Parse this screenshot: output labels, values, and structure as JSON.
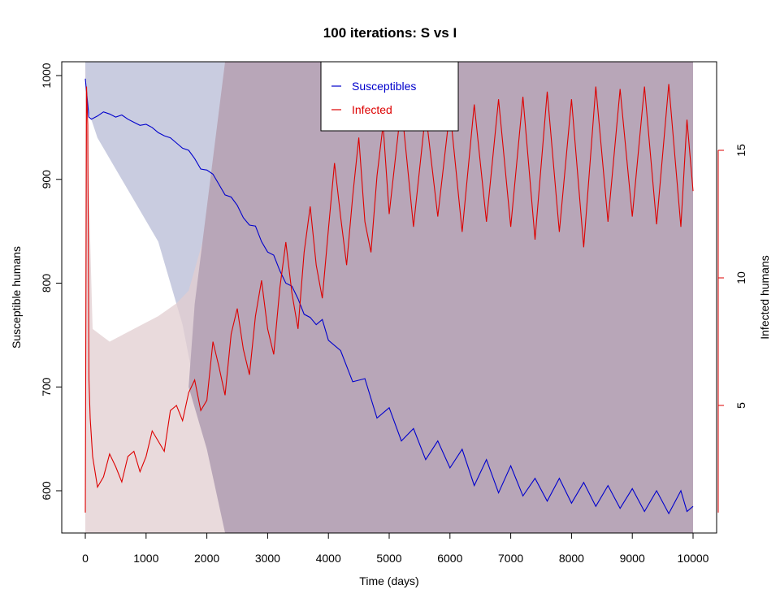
{
  "chart_data": {
    "type": "line",
    "title": "100  iterations: S vs I",
    "xlabel": "Time (days)",
    "ylabel_left": "Susceptible humans",
    "ylabel_right": "Infected humans",
    "xlim": [
      0,
      10000
    ],
    "ylim_left": [
      560,
      1013
    ],
    "ylim_right": [
      0,
      18.5
    ],
    "x_ticks": [
      "0",
      "1000",
      "2000",
      "3000",
      "4000",
      "5000",
      "6000",
      "7000",
      "8000",
      "9000",
      "10000"
    ],
    "y_left_ticks": [
      "600",
      "700",
      "800",
      "900",
      "1000"
    ],
    "y_right_ticks": [
      "5",
      "10",
      "15"
    ],
    "legend_position": "top-center",
    "series": [
      {
        "name": "Susceptibles",
        "axis": "left",
        "color": "#0000cc",
        "band_color": "#c9cce0",
        "x": [
          0,
          60,
          100,
          200,
          300,
          400,
          500,
          600,
          700,
          800,
          900,
          1000,
          1100,
          1200,
          1300,
          1400,
          1500,
          1600,
          1700,
          1800,
          1900,
          2000,
          2100,
          2200,
          2300,
          2400,
          2500,
          2600,
          2700,
          2800,
          2900,
          3000,
          3100,
          3200,
          3300,
          3400,
          3500,
          3600,
          3700,
          3800,
          3900,
          4000,
          4200,
          4400,
          4600,
          4800,
          5000,
          5200,
          5400,
          5600,
          5800,
          6000,
          6200,
          6400,
          6600,
          6800,
          7000,
          7200,
          7400,
          7600,
          7800,
          8000,
          8200,
          8400,
          8600,
          8800,
          9000,
          9200,
          9400,
          9600,
          9800,
          9900,
          10000
        ],
        "y": [
          997,
          960,
          958,
          961,
          965,
          963,
          960,
          962,
          958,
          955,
          952,
          953,
          950,
          945,
          942,
          940,
          935,
          930,
          928,
          920,
          910,
          909,
          905,
          895,
          885,
          883,
          875,
          863,
          856,
          855,
          840,
          830,
          827,
          812,
          800,
          797,
          785,
          770,
          767,
          760,
          765,
          745,
          735,
          705,
          708,
          670,
          680,
          648,
          660,
          630,
          648,
          622,
          640,
          605,
          630,
          598,
          624,
          595,
          612,
          590,
          612,
          588,
          608,
          585,
          605,
          583,
          602,
          580,
          600,
          578,
          600,
          580,
          585
        ],
        "band_lower": [
          975,
          940,
          920,
          900,
          880,
          860,
          840,
          800,
          760,
          700,
          640,
          600,
          575,
          565,
          560,
          560,
          560
        ],
        "band_upper": [
          1013,
          1013,
          1013,
          1013,
          1013,
          1013,
          1013,
          1013,
          1013,
          1013,
          1013,
          1013,
          1013,
          1013,
          1013,
          1013,
          1013
        ],
        "band_x": [
          0,
          200,
          400,
          600,
          800,
          1000,
          1200,
          1400,
          1600,
          1800,
          2000,
          2200,
          2400,
          2600,
          2800,
          3000,
          10000
        ]
      },
      {
        "name": "Infected",
        "axis": "right",
        "color": "#dd0000",
        "band_color": "#e2cdd0",
        "x": [
          0,
          20,
          40,
          60,
          80,
          120,
          200,
          300,
          400,
          500,
          600,
          700,
          800,
          900,
          1000,
          1100,
          1200,
          1300,
          1400,
          1500,
          1600,
          1700,
          1800,
          1900,
          2000,
          2100,
          2200,
          2300,
          2400,
          2500,
          2600,
          2700,
          2800,
          2900,
          3000,
          3100,
          3200,
          3300,
          3400,
          3500,
          3600,
          3700,
          3800,
          3900,
          4000,
          4100,
          4200,
          4300,
          4400,
          4500,
          4600,
          4700,
          4800,
          4900,
          5000,
          5200,
          5400,
          5600,
          5800,
          6000,
          6200,
          6400,
          6600,
          6800,
          7000,
          7200,
          7400,
          7600,
          7800,
          8000,
          8200,
          8400,
          8600,
          8800,
          9000,
          9200,
          9400,
          9600,
          9800,
          9900,
          10000
        ],
        "y": [
          0.8,
          17.5,
          16,
          6,
          4.5,
          3,
          1.8,
          2.2,
          3.1,
          2.6,
          2.0,
          3.0,
          3.2,
          2.4,
          3.0,
          4.0,
          3.6,
          3.2,
          4.8,
          5.0,
          4.4,
          5.5,
          6.0,
          4.8,
          5.2,
          7.5,
          6.5,
          5.4,
          7.8,
          8.8,
          7.2,
          6.2,
          8.5,
          9.9,
          8.0,
          7.0,
          9.6,
          11.4,
          9.4,
          8.0,
          11.0,
          12.8,
          10.5,
          9.2,
          11.9,
          14.5,
          12.4,
          10.5,
          13.2,
          15.5,
          12.2,
          11.0,
          14.0,
          16.0,
          12.5,
          16.8,
          12.0,
          16.5,
          12.4,
          16.6,
          11.8,
          16.8,
          12.2,
          17.0,
          12.0,
          17.1,
          11.5,
          17.3,
          11.8,
          17.0,
          11.2,
          17.5,
          12.2,
          17.4,
          12.4,
          17.5,
          12.1,
          17.6,
          12.0,
          16.2,
          13.4
        ],
        "band_lower": [
          0,
          0,
          0,
          0,
          0,
          0,
          0,
          0,
          0,
          0,
          0
        ],
        "band_upper": [
          18.5,
          8.0,
          7.5,
          8.0,
          8.5,
          9.0,
          9.5,
          12.0,
          18.5,
          18.5,
          18.5
        ],
        "band_x": [
          0,
          120,
          400,
          800,
          1200,
          1500,
          1700,
          2000,
          2300,
          2600,
          10000
        ]
      }
    ]
  }
}
